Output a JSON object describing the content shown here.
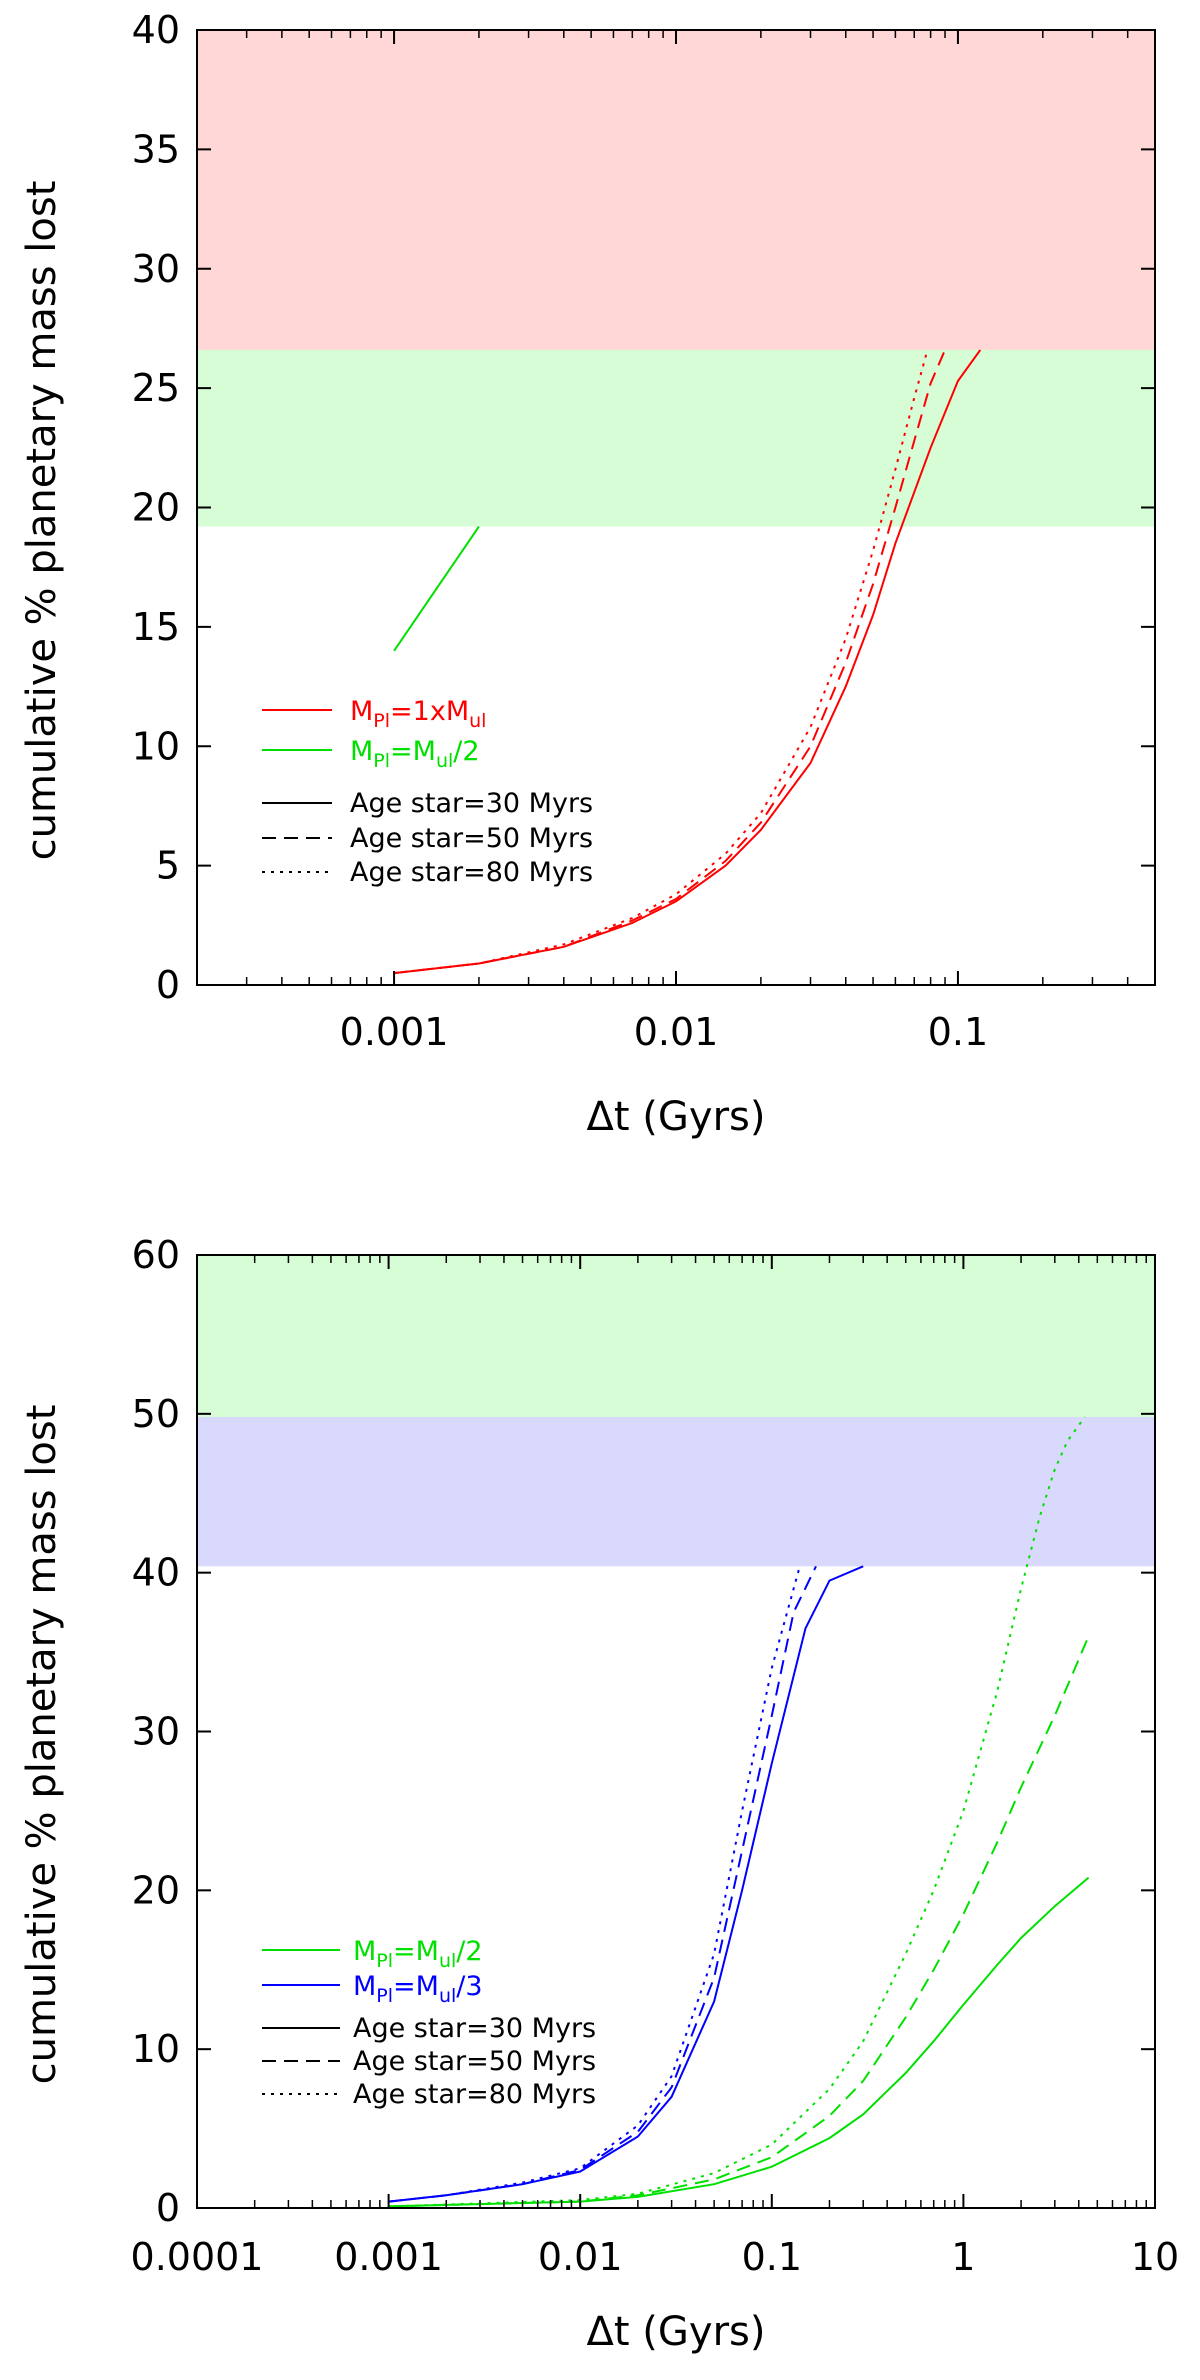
{
  "chart_data": [
    {
      "type": "line",
      "xscale": "log",
      "xlim": [
        0.0002,
        0.5
      ],
      "ylim": [
        0,
        40
      ],
      "xticks": [
        0.001,
        0.01,
        0.1
      ],
      "xtick_labels": [
        "0.001",
        "0.01",
        "0.1"
      ],
      "yticks": [
        0,
        5,
        10,
        15,
        20,
        25,
        30,
        35,
        40
      ],
      "ytick_labels": [
        "0",
        "5",
        "10",
        "15",
        "20",
        "25",
        "30",
        "35",
        "40"
      ],
      "xlabel": "Δt (Gyrs)",
      "ylabel": "cumulative % planetary mass lost",
      "bands": [
        {
          "name": "red-band",
          "y0": 26.6,
          "y1": 40,
          "color": "#ffd7d7"
        },
        {
          "name": "green-band",
          "y0": 19.2,
          "y1": 26.6,
          "color": "#d7fdd7"
        }
      ],
      "legend_colors": [
        {
          "color": "#ff0000",
          "main": "M",
          "sub1": "Pl",
          "mid": "=1xM",
          "sub2": "ul",
          "tail": ""
        },
        {
          "color": "#00e000",
          "main": "M",
          "sub1": "Pl",
          "mid": "=M",
          "sub2": "ul",
          "tail": "/2"
        }
      ],
      "legend_styles": [
        {
          "dash": "solid",
          "label": "Age star=30 Myrs"
        },
        {
          "dash": "dashed",
          "label": "Age star=50 Myrs"
        },
        {
          "dash": "dotted",
          "label": "Age star=80 Myrs"
        }
      ],
      "series": [
        {
          "name": "M_Pl=M_ul/2, Age star=30 Myrs",
          "color": "#00e000",
          "dash": "solid",
          "x": [
            0.001,
            0.002
          ],
          "y": [
            14.0,
            19.2
          ]
        },
        {
          "name": "M_Pl=1xM_ul, Age star=30 Myrs",
          "color": "#ff0000",
          "dash": "solid",
          "x": [
            0.001,
            0.002,
            0.004,
            0.007,
            0.01,
            0.015,
            0.02,
            0.03,
            0.04,
            0.05,
            0.06,
            0.08,
            0.1,
            0.12
          ],
          "y": [
            0.5,
            0.9,
            1.6,
            2.6,
            3.5,
            5.0,
            6.5,
            9.3,
            12.5,
            15.5,
            18.5,
            22.5,
            25.3,
            26.6
          ]
        },
        {
          "name": "M_Pl=1xM_ul, Age star=50 Myrs",
          "color": "#ff0000",
          "dash": "dashed",
          "x": [
            0.001,
            0.002,
            0.004,
            0.007,
            0.01,
            0.015,
            0.02,
            0.03,
            0.04,
            0.05,
            0.06,
            0.07,
            0.08,
            0.09
          ],
          "y": [
            0.5,
            0.9,
            1.6,
            2.7,
            3.6,
            5.2,
            6.8,
            10.0,
            13.5,
            16.8,
            20.0,
            22.8,
            25.2,
            26.6
          ]
        },
        {
          "name": "M_Pl=1xM_ul, Age star=80 Myrs",
          "color": "#ff0000",
          "dash": "dotted",
          "x": [
            0.001,
            0.002,
            0.004,
            0.007,
            0.01,
            0.015,
            0.02,
            0.03,
            0.04,
            0.05,
            0.06,
            0.07,
            0.078
          ],
          "y": [
            0.5,
            0.9,
            1.7,
            2.8,
            3.8,
            5.5,
            7.2,
            10.8,
            14.5,
            18.2,
            21.6,
            24.6,
            26.6
          ]
        }
      ]
    },
    {
      "type": "line",
      "xscale": "log",
      "xlim": [
        0.0001,
        10
      ],
      "ylim": [
        0,
        60
      ],
      "xticks": [
        0.0001,
        0.001,
        0.01,
        0.1,
        1,
        10
      ],
      "xtick_labels": [
        "0.0001",
        "0.001",
        "0.01",
        "0.1",
        "1",
        "10"
      ],
      "yticks": [
        0,
        10,
        20,
        30,
        40,
        50,
        60
      ],
      "ytick_labels": [
        "0",
        "10",
        "20",
        "30",
        "40",
        "50",
        "60"
      ],
      "xlabel": "Δt (Gyrs)",
      "ylabel": "cumulative % planetary mass lost",
      "bands": [
        {
          "name": "green-band",
          "y0": 49.8,
          "y1": 60,
          "color": "#d7fdd7"
        },
        {
          "name": "blue-band",
          "y0": 40.4,
          "y1": 49.8,
          "color": "#d9d9fd"
        }
      ],
      "legend_colors": [
        {
          "color": "#00e000",
          "main": "M",
          "sub1": "Pl",
          "mid": "=M",
          "sub2": "ul",
          "tail": "/2"
        },
        {
          "color": "#0000ff",
          "main": "M",
          "sub1": "Pl",
          "mid": "=M",
          "sub2": "ul",
          "tail": "/3"
        }
      ],
      "legend_styles": [
        {
          "dash": "solid",
          "label": "Age star=30 Myrs"
        },
        {
          "dash": "dashed",
          "label": "Age star=50 Myrs"
        },
        {
          "dash": "dotted",
          "label": "Age star=80 Myrs"
        }
      ],
      "series": [
        {
          "name": "M_Pl=M_ul/3, Age star=30 Myrs",
          "color": "#0000ff",
          "dash": "solid",
          "x": [
            0.001,
            0.002,
            0.005,
            0.01,
            0.02,
            0.03,
            0.05,
            0.07,
            0.1,
            0.15,
            0.2,
            0.3
          ],
          "y": [
            0.4,
            0.8,
            1.5,
            2.3,
            4.5,
            7.0,
            13.0,
            20.0,
            28.0,
            36.5,
            39.5,
            40.4
          ]
        },
        {
          "name": "M_Pl=M_ul/3, Age star=50 Myrs",
          "color": "#0000ff",
          "dash": "dashed",
          "x": [
            0.001,
            0.002,
            0.005,
            0.01,
            0.02,
            0.03,
            0.05,
            0.07,
            0.1,
            0.13,
            0.17
          ],
          "y": [
            0.4,
            0.8,
            1.5,
            2.4,
            4.8,
            7.6,
            14.5,
            22.5,
            31.0,
            37.5,
            40.4
          ]
        },
        {
          "name": "M_Pl=M_ul/3, Age star=80 Myrs",
          "color": "#0000ff",
          "dash": "dotted",
          "x": [
            0.001,
            0.002,
            0.005,
            0.01,
            0.02,
            0.03,
            0.05,
            0.07,
            0.1,
            0.14
          ],
          "y": [
            0.4,
            0.8,
            1.6,
            2.5,
            5.2,
            8.3,
            16.0,
            25.0,
            34.0,
            40.4
          ]
        },
        {
          "name": "M_Pl=M_ul/2, Age star=30 Myrs",
          "color": "#00e000",
          "dash": "solid",
          "x": [
            0.001,
            0.01,
            0.02,
            0.05,
            0.1,
            0.2,
            0.3,
            0.5,
            0.7,
            1,
            1.5,
            2,
            3,
            4.5
          ],
          "y": [
            0.1,
            0.4,
            0.7,
            1.5,
            2.6,
            4.4,
            5.9,
            8.5,
            10.5,
            12.8,
            15.3,
            17.0,
            19.0,
            20.8
          ]
        },
        {
          "name": "M_Pl=M_ul/2, Age star=50 Myrs",
          "color": "#00e000",
          "dash": "dashed",
          "x": [
            0.001,
            0.01,
            0.02,
            0.05,
            0.1,
            0.2,
            0.3,
            0.5,
            0.7,
            1,
            1.5,
            2,
            3,
            4.5
          ],
          "y": [
            0.1,
            0.4,
            0.8,
            1.8,
            3.2,
            5.8,
            8.0,
            12.0,
            15.0,
            18.5,
            23.0,
            26.5,
            31.0,
            36.0
          ]
        },
        {
          "name": "M_Pl=M_ul/2, Age star=80 Myrs",
          "color": "#00e000",
          "dash": "dotted",
          "x": [
            0.001,
            0.01,
            0.02,
            0.05,
            0.1,
            0.2,
            0.3,
            0.5,
            0.7,
            1,
            1.5,
            2,
            2.5,
            3,
            3.5,
            4.3
          ],
          "y": [
            0.1,
            0.5,
            0.9,
            2.2,
            4.0,
            7.5,
            10.5,
            16.0,
            20.0,
            25.0,
            32.5,
            39.0,
            43.5,
            46.5,
            48.3,
            49.8
          ]
        }
      ]
    }
  ]
}
